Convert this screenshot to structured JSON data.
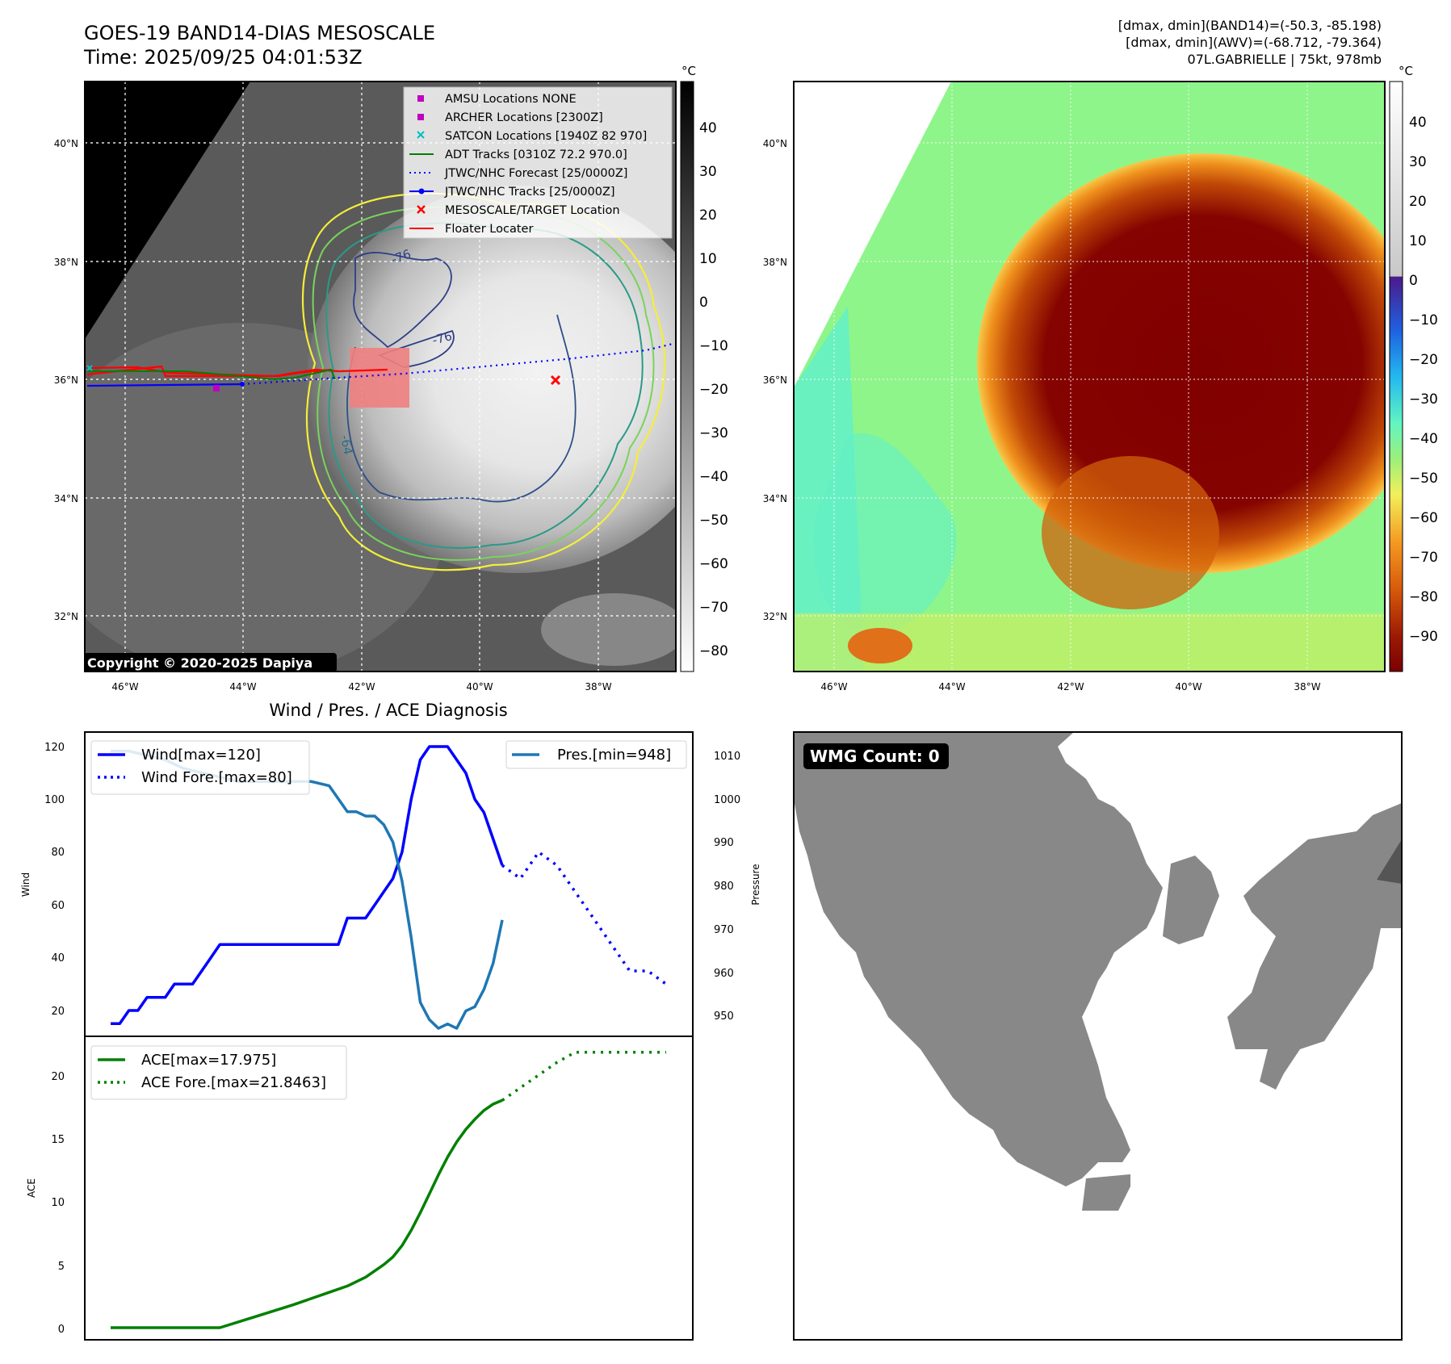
{
  "header": {
    "title": "GOES-19 BAND14-DIAS MESOSCALE",
    "time": "Time: 2025/09/25 04:01:53Z",
    "stats_line1": "[dmax, dmin](BAND14)=(-50.3, -85.198)",
    "stats_line2": "[dmax, dmin](AWV)=(-68.712, -79.364)",
    "storm_line": "07L.GABRIELLE | 75kt, 978mb"
  },
  "colors": {
    "wind": "#0000ff",
    "pressure": "#1f77b4",
    "ace": "#008000",
    "adt": "#008000",
    "floater": "#ff0000",
    "target": "#ff0000",
    "amsu": "#c000c0",
    "satcon": "#00c0c0"
  },
  "map_left": {
    "lat_ticks": [
      "40°N",
      "38°N",
      "36°N",
      "34°N",
      "32°N"
    ],
    "lon_ticks": [
      "46°W",
      "44°W",
      "42°W",
      "40°W",
      "38°W"
    ],
    "copyright": "Copyright © 2020-2025 Dapiya",
    "contour_labels": [
      "-76",
      "-76",
      "-64"
    ],
    "colorbar_unit": "°C",
    "colorbar_ticks": [
      "40",
      "30",
      "20",
      "10",
      "0",
      "−10",
      "−20",
      "−30",
      "−40",
      "−50",
      "−60",
      "−70",
      "−80"
    ],
    "legend": [
      {
        "label": "AMSU Locations NONE",
        "icon": "square-marker"
      },
      {
        "label": "ARCHER Locations [2300Z]",
        "icon": "square-marker"
      },
      {
        "label": "SATCON Locations [1940Z 82 970]",
        "icon": "x-marker"
      },
      {
        "label": "ADT Tracks [0310Z 72.2 970.0]",
        "icon": "solid-line"
      },
      {
        "label": "JTWC/NHC Forecast [25/0000Z]",
        "icon": "dotted-line"
      },
      {
        "label": "JTWC/NHC Tracks [25/0000Z]",
        "icon": "line-dot"
      },
      {
        "label": "MESOSCALE/TARGET Location",
        "icon": "x-marker"
      },
      {
        "label": "Floater Locater",
        "icon": "solid-line"
      }
    ]
  },
  "map_right": {
    "lat_ticks": [
      "40°N",
      "38°N",
      "36°N",
      "34°N",
      "32°N"
    ],
    "lon_ticks": [
      "46°W",
      "44°W",
      "42°W",
      "40°W",
      "38°W"
    ],
    "colorbar_unit": "°C",
    "colorbar_ticks": [
      "40",
      "30",
      "20",
      "10",
      "0",
      "−10",
      "−20",
      "−30",
      "−40",
      "−50",
      "−60",
      "−70",
      "−80",
      "−90"
    ]
  },
  "diagnosis": {
    "title": "Wind / Pres. / ACE Diagnosis",
    "wind_axis_label": "Wind",
    "pressure_axis_label": "Pressure",
    "ace_axis_label": "ACE",
    "wind_ticks": [
      "120",
      "100",
      "80",
      "60",
      "40",
      "20"
    ],
    "pressure_ticks": [
      "1010",
      "1000",
      "990",
      "980",
      "970",
      "960",
      "950"
    ],
    "ace_ticks": [
      "20",
      "15",
      "10",
      "5",
      "0"
    ],
    "wind_legend": "Wind[max=120]",
    "wind_fore_legend": "Wind Fore.[max=80]",
    "pres_legend": "Pres.[min=948]",
    "ace_legend": "ACE[max=17.975]",
    "ace_fore_legend": "ACE Fore.[max=21.8463]"
  },
  "wmg": {
    "label": "WMG Count: 0"
  },
  "chart_data": [
    {
      "type": "line",
      "title": "Wind / Pres. / ACE Diagnosis",
      "ylabel": "Wind",
      "ylim": [
        14,
        125
      ],
      "x": [
        0,
        1,
        2,
        3,
        4,
        5,
        6,
        7,
        8,
        9,
        10,
        11,
        12,
        13,
        14,
        15,
        16,
        17,
        18,
        19,
        20,
        21,
        22,
        23,
        24,
        25,
        26,
        27,
        28,
        29,
        30,
        31,
        32,
        33,
        34,
        35,
        36,
        37,
        38,
        39,
        40,
        41,
        42,
        43,
        44,
        45,
        46,
        47,
        48,
        49,
        50,
        51,
        52,
        53,
        54,
        55,
        56
      ],
      "series": [
        {
          "name": "Wind[max=120]",
          "style": "solid",
          "x": [
            0,
            1,
            2,
            3,
            4,
            5,
            6,
            7,
            8,
            9,
            10,
            11,
            12,
            13,
            14,
            15,
            16,
            17,
            18,
            19,
            20,
            21,
            22,
            23,
            24,
            25,
            26,
            27,
            28,
            29,
            30,
            31,
            32,
            33,
            34,
            35,
            36,
            37,
            38,
            39,
            40,
            41,
            42,
            43,
            44,
            45,
            46,
            47,
            48,
            49,
            50,
            51,
            52,
            53,
            54,
            55,
            56
          ],
          "values": [
            null,
            null,
            null,
            null,
            null,
            null,
            null,
            null,
            null,
            null,
            null,
            null,
            null,
            null,
            null,
            null,
            null,
            null,
            null,
            null,
            null,
            null,
            null,
            null,
            null,
            null,
            null,
            null,
            null,
            null,
            null,
            null,
            null,
            null,
            null,
            null,
            null,
            null,
            null,
            null,
            null,
            null,
            null,
            null,
            null,
            null,
            null,
            null,
            null,
            null,
            null,
            null,
            null,
            null,
            null,
            null,
            null
          ]
        },
        {
          "name": "Wind Fore.[max=80]",
          "style": "dotted"
        }
      ],
      "wind": {
        "x": [
          0,
          1,
          2,
          3,
          4,
          5,
          6,
          7,
          8,
          9,
          10,
          11,
          12,
          13,
          14,
          15,
          16,
          17,
          18,
          19,
          20,
          21,
          22,
          23,
          24,
          25,
          26,
          27,
          28,
          29,
          30,
          31,
          32,
          33,
          34,
          35,
          36,
          37,
          38,
          39,
          40,
          41,
          42,
          43,
          44,
          45
        ],
        "values": [
          15,
          15,
          20,
          20,
          25,
          25,
          25,
          30,
          30,
          30,
          35,
          40,
          45,
          45,
          45,
          45,
          45,
          45,
          45,
          45,
          45,
          45,
          45,
          45,
          45,
          45,
          55,
          55,
          55,
          60,
          65,
          70,
          80,
          100,
          115,
          120,
          120,
          120,
          115,
          110,
          100,
          95,
          85,
          75,
          null,
          null
        ]
      },
      "wind_forecast": {
        "x": [
          43,
          45,
          47,
          49,
          51,
          53,
          55,
          57,
          59,
          61
        ],
        "values": [
          75,
          70,
          80,
          75,
          65,
          55,
          45,
          35,
          35,
          30
        ]
      }
    },
    {
      "type": "line",
      "title": "Pressure",
      "ylabel": "Pressure",
      "ylim": [
        946,
        1012
      ],
      "series": [
        {
          "name": "Pres.[min=948]",
          "x": [
            0,
            2,
            4,
            6,
            8,
            10,
            12,
            14,
            16,
            18,
            20,
            22,
            24,
            26,
            27,
            28,
            29,
            30,
            31,
            32,
            33,
            34,
            35,
            36,
            37,
            38,
            39,
            40,
            41,
            42,
            43
          ],
          "values": [
            1011,
            1011,
            1010,
            1009,
            1007,
            1006,
            1005,
            1004,
            1004,
            1004,
            1004,
            1004,
            1003,
            997,
            997,
            996,
            996,
            994,
            990,
            981,
            968,
            953,
            949,
            947,
            948,
            947,
            951,
            952,
            956,
            962,
            972
          ]
        }
      ]
    },
    {
      "type": "line",
      "title": "ACE",
      "ylabel": "ACE",
      "ylim": [
        -1,
        23
      ],
      "series": [
        {
          "name": "ACE[max=17.975]",
          "style": "solid",
          "x": [
            0,
            4,
            8,
            12,
            16,
            20,
            24,
            26,
            28,
            30,
            31,
            32,
            33,
            34,
            35,
            36,
            37,
            38,
            39,
            40,
            41,
            42,
            43
          ],
          "values": [
            0,
            0,
            0,
            0,
            0.9,
            1.8,
            2.8,
            3.3,
            4.0,
            5.0,
            5.6,
            6.5,
            7.7,
            9.1,
            10.6,
            12.1,
            13.5,
            14.7,
            15.7,
            16.5,
            17.2,
            17.7,
            18.0
          ]
        },
        {
          "name": "ACE Fore.[max=21.8463]",
          "style": "dotted",
          "x": [
            43,
            45,
            47,
            49,
            51,
            53,
            55,
            57,
            59,
            61
          ],
          "values": [
            18.0,
            19.0,
            20.0,
            21.0,
            21.8,
            21.8,
            21.8,
            21.8,
            21.8,
            21.8
          ]
        }
      ]
    }
  ]
}
